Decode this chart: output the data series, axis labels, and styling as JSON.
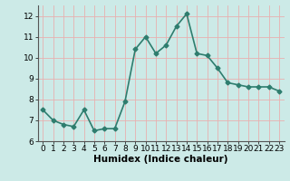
{
  "x": [
    0,
    1,
    2,
    3,
    4,
    5,
    6,
    7,
    8,
    9,
    10,
    11,
    12,
    13,
    14,
    15,
    16,
    17,
    18,
    19,
    20,
    21,
    22,
    23
  ],
  "y": [
    7.5,
    7.0,
    6.8,
    6.7,
    7.5,
    6.5,
    6.6,
    6.6,
    7.9,
    10.4,
    11.0,
    10.2,
    10.6,
    11.5,
    12.1,
    10.2,
    10.1,
    9.5,
    8.8,
    8.7,
    8.6,
    8.6,
    8.6,
    8.4
  ],
  "line_color": "#2e7d6e",
  "marker": "D",
  "marker_size": 2.5,
  "bg_color": "#cceae7",
  "grid_color": "#e8b0b0",
  "xlabel": "Humidex (Indice chaleur)",
  "xlim": [
    -0.5,
    23.5
  ],
  "ylim": [
    6,
    12.5
  ],
  "yticks": [
    6,
    7,
    8,
    9,
    10,
    11,
    12
  ],
  "xticks": [
    0,
    1,
    2,
    3,
    4,
    5,
    6,
    7,
    8,
    9,
    10,
    11,
    12,
    13,
    14,
    15,
    16,
    17,
    18,
    19,
    20,
    21,
    22,
    23
  ],
  "xlabel_fontsize": 7.5,
  "tick_fontsize": 6.5,
  "linewidth": 1.2
}
